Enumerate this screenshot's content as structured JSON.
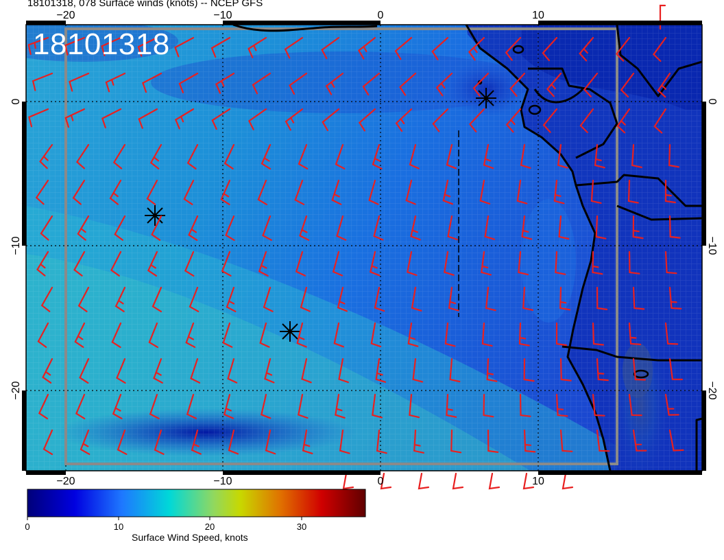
{
  "title": "18101318, 078 Surface winds (knots) -- NCEP GFS",
  "stamp": "18101318",
  "colors": {
    "barb": "#e82020",
    "coast": "#000000",
    "domain_box": "#8a8a8a",
    "ocean_base": "#1c5fd6"
  },
  "map": {
    "lon_ticks": [
      "−20",
      "−10",
      "0",
      "10"
    ],
    "lat_ticks": [
      "0",
      "−10",
      "−20"
    ],
    "markers": [
      "storm-symbol",
      "storm-symbol",
      "storm-symbol"
    ]
  },
  "colorbar": {
    "label": "Surface Wind Speed, knots",
    "ticks": [
      "0",
      "10",
      "20",
      "30"
    ],
    "range": [
      0,
      37
    ],
    "colors": [
      "#00007a",
      "#0000e0",
      "#1e78ff",
      "#00d8d8",
      "#c8d800",
      "#e07000",
      "#d00000",
      "#600000"
    ]
  }
}
